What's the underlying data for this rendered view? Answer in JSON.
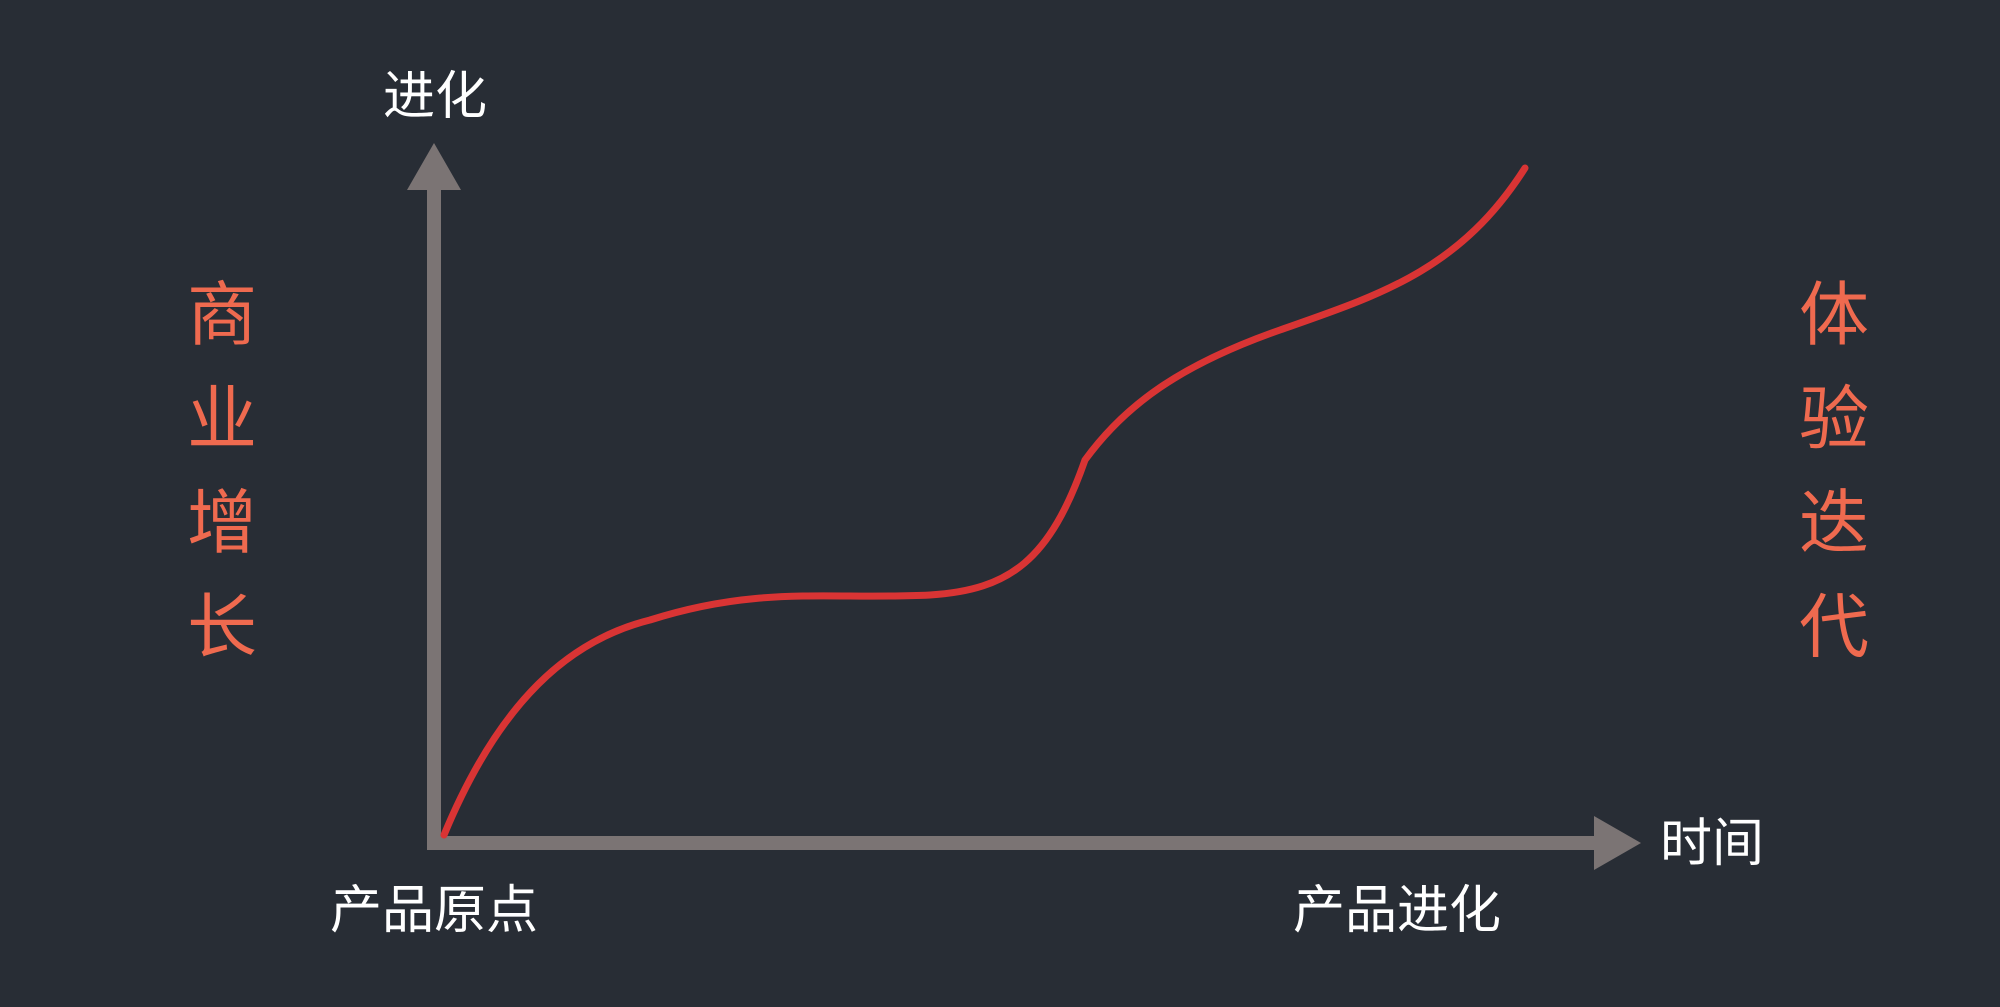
{
  "diagram": {
    "y_axis_label": "进化",
    "x_axis_label": "时间",
    "origin_label": "产品原点",
    "end_label": "产品进化",
    "left_text": [
      "商",
      "业",
      "增",
      "长"
    ],
    "right_text": [
      "体",
      "验",
      "迭",
      "代"
    ]
  },
  "colors": {
    "background": "#282d35",
    "axis": "#7b7474",
    "curve": "#d93434",
    "text": "#ffffff",
    "accent": "#ef6a4f"
  }
}
